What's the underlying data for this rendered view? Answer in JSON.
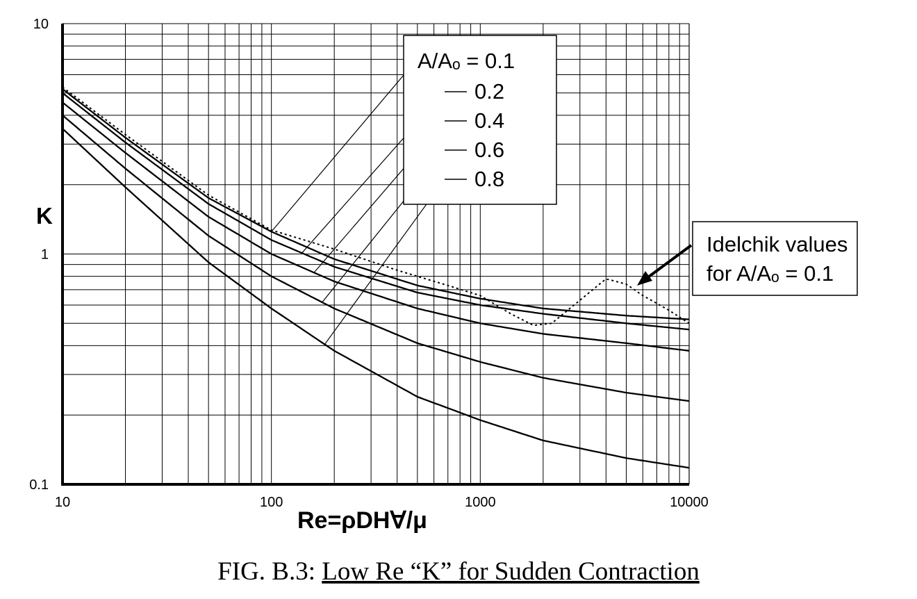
{
  "chart_data": {
    "type": "line",
    "x_scale": "log",
    "y_scale": "log",
    "xlim": [
      10,
      10000
    ],
    "ylim": [
      0.1,
      10
    ],
    "grid": true,
    "x_ticks": [
      "10",
      "100",
      "1000",
      "10000"
    ],
    "y_ticks": [
      "0.1",
      "1",
      "10"
    ],
    "xlabel": "Re=ρDH∀/μ",
    "ylabel": "K",
    "caption": {
      "prefix": "FIG. B.3: ",
      "title": "Low Re “K” for Sudden Contraction"
    },
    "legend_title": "A/Aₒ = 0.1",
    "series": [
      {
        "name": "0.1",
        "x": [
          10,
          20,
          50,
          100,
          200,
          500,
          1000,
          2000,
          5000,
          10000
        ],
        "y": [
          5.2,
          3.2,
          1.75,
          1.25,
          0.95,
          0.73,
          0.64,
          0.58,
          0.54,
          0.52
        ]
      },
      {
        "name": "0.2",
        "x": [
          10,
          20,
          50,
          100,
          200,
          500,
          1000,
          2000,
          5000,
          10000
        ],
        "y": [
          5.0,
          3.05,
          1.65,
          1.15,
          0.88,
          0.68,
          0.6,
          0.55,
          0.5,
          0.47
        ]
      },
      {
        "name": "0.4",
        "x": [
          10,
          20,
          50,
          100,
          200,
          500,
          1000,
          2000,
          5000,
          10000
        ],
        "y": [
          4.55,
          2.75,
          1.45,
          1.0,
          0.76,
          0.58,
          0.5,
          0.45,
          0.41,
          0.38
        ]
      },
      {
        "name": "0.6",
        "x": [
          10,
          20,
          50,
          100,
          200,
          500,
          1000,
          2000,
          5000,
          10000
        ],
        "y": [
          4.0,
          2.35,
          1.2,
          0.8,
          0.58,
          0.41,
          0.34,
          0.29,
          0.25,
          0.23
        ]
      },
      {
        "name": "0.8",
        "x": [
          10,
          20,
          50,
          100,
          200,
          500,
          1000,
          2000,
          5000,
          10000
        ],
        "y": [
          3.5,
          1.95,
          0.92,
          0.58,
          0.38,
          0.24,
          0.19,
          0.155,
          0.13,
          0.118
        ]
      },
      {
        "name": "Idelchik values for A/Aₒ = 0.1",
        "style": "dotted",
        "x": [
          10,
          20,
          50,
          100,
          200,
          400,
          700,
          1000,
          1400,
          1800,
          2200,
          3000,
          4000,
          5000,
          6000,
          8000,
          10000
        ],
        "y": [
          5.3,
          3.3,
          1.8,
          1.27,
          1.05,
          0.85,
          0.73,
          0.66,
          0.55,
          0.49,
          0.5,
          0.63,
          0.78,
          0.74,
          0.66,
          0.57,
          0.5
        ]
      }
    ],
    "annotation": {
      "line1": "Idelchik values",
      "line2": "for A/Aₒ = 0.1"
    }
  }
}
